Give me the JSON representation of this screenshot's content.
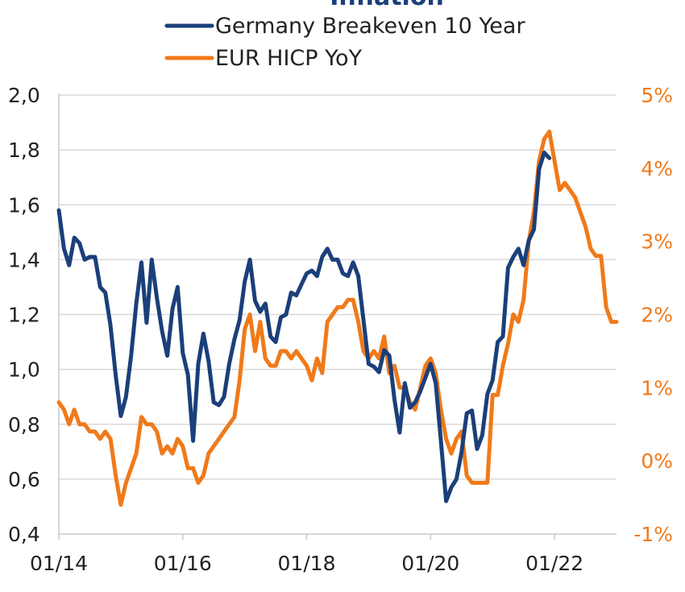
{
  "chart_data": {
    "type": "line",
    "title": "Inflation",
    "colors": {
      "breakeven": "#1b3f7a",
      "hicp": "#f07a1a",
      "grid": "#d9d9d9",
      "axis": "#c8c8c8"
    },
    "x_ticks": [
      "01/14",
      "01/16",
      "01/18",
      "01/20",
      "01/22"
    ],
    "x_range": [
      "2014-01",
      "2023-01"
    ],
    "y_left": {
      "ticks": [
        "0,4",
        "0,6",
        "0,8",
        "1,0",
        "1,2",
        "1,4",
        "1,6",
        "1,8",
        "2,0"
      ],
      "range": [
        0.4,
        2.0
      ]
    },
    "y_right": {
      "ticks": [
        "-1%",
        "0%",
        "1%",
        "2%",
        "3%",
        "4%",
        "5%"
      ],
      "range": [
        -1,
        5
      ]
    },
    "legend_position": "top-center",
    "grid": "horizontal",
    "series": [
      {
        "name": "Germany Breakeven 10 Year",
        "axis": "left",
        "points": [
          [
            "2014-01",
            1.58
          ],
          [
            "2014-02",
            1.44
          ],
          [
            "2014-03",
            1.38
          ],
          [
            "2014-04",
            1.48
          ],
          [
            "2014-05",
            1.46
          ],
          [
            "2014-06",
            1.4
          ],
          [
            "2014-07",
            1.41
          ],
          [
            "2014-08",
            1.41
          ],
          [
            "2014-09",
            1.3
          ],
          [
            "2014-10",
            1.28
          ],
          [
            "2014-11",
            1.16
          ],
          [
            "2014-12",
            0.98
          ],
          [
            "2015-01",
            0.83
          ],
          [
            "2015-02",
            0.9
          ],
          [
            "2015-03",
            1.05
          ],
          [
            "2015-04",
            1.24
          ],
          [
            "2015-05",
            1.39
          ],
          [
            "2015-06",
            1.17
          ],
          [
            "2015-07",
            1.4
          ],
          [
            "2015-08",
            1.26
          ],
          [
            "2015-09",
            1.14
          ],
          [
            "2015-10",
            1.05
          ],
          [
            "2015-11",
            1.22
          ],
          [
            "2015-12",
            1.3
          ],
          [
            "2016-01",
            1.06
          ],
          [
            "2016-02",
            0.98
          ],
          [
            "2016-03",
            0.74
          ],
          [
            "2016-04",
            1.02
          ],
          [
            "2016-05",
            1.13
          ],
          [
            "2016-06",
            1.03
          ],
          [
            "2016-07",
            0.88
          ],
          [
            "2016-08",
            0.87
          ],
          [
            "2016-09",
            0.9
          ],
          [
            "2016-10",
            1.02
          ],
          [
            "2016-11",
            1.11
          ],
          [
            "2016-12",
            1.18
          ],
          [
            "2017-01",
            1.32
          ],
          [
            "2017-02",
            1.4
          ],
          [
            "2017-03",
            1.25
          ],
          [
            "2017-04",
            1.21
          ],
          [
            "2017-05",
            1.24
          ],
          [
            "2017-06",
            1.12
          ],
          [
            "2017-07",
            1.1
          ],
          [
            "2017-08",
            1.19
          ],
          [
            "2017-09",
            1.2
          ],
          [
            "2017-10",
            1.28
          ],
          [
            "2017-11",
            1.27
          ],
          [
            "2017-12",
            1.31
          ],
          [
            "2018-01",
            1.35
          ],
          [
            "2018-02",
            1.36
          ],
          [
            "2018-03",
            1.34
          ],
          [
            "2018-04",
            1.41
          ],
          [
            "2018-05",
            1.44
          ],
          [
            "2018-06",
            1.4
          ],
          [
            "2018-07",
            1.4
          ],
          [
            "2018-08",
            1.35
          ],
          [
            "2018-09",
            1.34
          ],
          [
            "2018-10",
            1.39
          ],
          [
            "2018-11",
            1.34
          ],
          [
            "2018-12",
            1.18
          ],
          [
            "2019-01",
            1.02
          ],
          [
            "2019-02",
            1.01
          ],
          [
            "2019-03",
            0.99
          ],
          [
            "2019-04",
            1.07
          ],
          [
            "2019-05",
            1.05
          ],
          [
            "2019-06",
            0.89
          ],
          [
            "2019-07",
            0.77
          ],
          [
            "2019-08",
            0.95
          ],
          [
            "2019-09",
            0.86
          ],
          [
            "2019-10",
            0.88
          ],
          [
            "2019-11",
            0.92
          ],
          [
            "2019-12",
            0.97
          ],
          [
            "2020-01",
            1.02
          ],
          [
            "2020-02",
            0.95
          ],
          [
            "2020-03",
            0.74
          ],
          [
            "2020-04",
            0.52
          ],
          [
            "2020-05",
            0.57
          ],
          [
            "2020-06",
            0.6
          ],
          [
            "2020-07",
            0.7
          ],
          [
            "2020-08",
            0.84
          ],
          [
            "2020-09",
            0.85
          ],
          [
            "2020-10",
            0.71
          ],
          [
            "2020-11",
            0.76
          ],
          [
            "2020-12",
            0.91
          ],
          [
            "2021-01",
            0.96
          ],
          [
            "2021-02",
            1.1
          ],
          [
            "2021-03",
            1.12
          ],
          [
            "2021-04",
            1.37
          ],
          [
            "2021-05",
            1.41
          ],
          [
            "2021-06",
            1.44
          ],
          [
            "2021-07",
            1.38
          ],
          [
            "2021-08",
            1.47
          ],
          [
            "2021-09",
            1.51
          ],
          [
            "2021-10",
            1.73
          ],
          [
            "2021-11",
            1.79
          ],
          [
            "2021-12",
            1.77
          ]
        ]
      },
      {
        "name": "EUR HICP YoY",
        "axis": "right",
        "points": [
          [
            "2014-01",
            0.8
          ],
          [
            "2014-02",
            0.7
          ],
          [
            "2014-03",
            0.5
          ],
          [
            "2014-04",
            0.7
          ],
          [
            "2014-05",
            0.5
          ],
          [
            "2014-06",
            0.5
          ],
          [
            "2014-07",
            0.4
          ],
          [
            "2014-08",
            0.4
          ],
          [
            "2014-09",
            0.3
          ],
          [
            "2014-10",
            0.4
          ],
          [
            "2014-11",
            0.3
          ],
          [
            "2014-12",
            -0.2
          ],
          [
            "2015-01",
            -0.6
          ],
          [
            "2015-02",
            -0.3
          ],
          [
            "2015-03",
            -0.1
          ],
          [
            "2015-04",
            0.1
          ],
          [
            "2015-05",
            0.6
          ],
          [
            "2015-06",
            0.5
          ],
          [
            "2015-07",
            0.5
          ],
          [
            "2015-08",
            0.4
          ],
          [
            "2015-09",
            0.1
          ],
          [
            "2015-10",
            0.2
          ],
          [
            "2015-11",
            0.1
          ],
          [
            "2015-12",
            0.3
          ],
          [
            "2016-01",
            0.2
          ],
          [
            "2016-02",
            -0.1
          ],
          [
            "2016-03",
            -0.1
          ],
          [
            "2016-04",
            -0.3
          ],
          [
            "2016-05",
            -0.2
          ],
          [
            "2016-06",
            0.1
          ],
          [
            "2016-07",
            0.2
          ],
          [
            "2016-08",
            0.3
          ],
          [
            "2016-09",
            0.4
          ],
          [
            "2016-10",
            0.5
          ],
          [
            "2016-11",
            0.6
          ],
          [
            "2016-12",
            1.1
          ],
          [
            "2017-01",
            1.8
          ],
          [
            "2017-02",
            2.0
          ],
          [
            "2017-03",
            1.5
          ],
          [
            "2017-04",
            1.9
          ],
          [
            "2017-05",
            1.4
          ],
          [
            "2017-06",
            1.3
          ],
          [
            "2017-07",
            1.3
          ],
          [
            "2017-08",
            1.5
          ],
          [
            "2017-09",
            1.5
          ],
          [
            "2017-10",
            1.4
          ],
          [
            "2017-11",
            1.5
          ],
          [
            "2017-12",
            1.4
          ],
          [
            "2018-01",
            1.3
          ],
          [
            "2018-02",
            1.1
          ],
          [
            "2018-03",
            1.4
          ],
          [
            "2018-04",
            1.2
          ],
          [
            "2018-05",
            1.9
          ],
          [
            "2018-06",
            2.0
          ],
          [
            "2018-07",
            2.1
          ],
          [
            "2018-08",
            2.1
          ],
          [
            "2018-09",
            2.2
          ],
          [
            "2018-10",
            2.2
          ],
          [
            "2018-11",
            1.9
          ],
          [
            "2018-12",
            1.5
          ],
          [
            "2019-01",
            1.4
          ],
          [
            "2019-02",
            1.5
          ],
          [
            "2019-03",
            1.4
          ],
          [
            "2019-04",
            1.7
          ],
          [
            "2019-05",
            1.2
          ],
          [
            "2019-06",
            1.3
          ],
          [
            "2019-07",
            1.0
          ],
          [
            "2019-08",
            1.0
          ],
          [
            "2019-09",
            0.8
          ],
          [
            "2019-10",
            0.7
          ],
          [
            "2019-11",
            1.0
          ],
          [
            "2019-12",
            1.3
          ],
          [
            "2020-01",
            1.4
          ],
          [
            "2020-02",
            1.2
          ],
          [
            "2020-03",
            0.7
          ],
          [
            "2020-04",
            0.3
          ],
          [
            "2020-05",
            0.1
          ],
          [
            "2020-06",
            0.3
          ],
          [
            "2020-07",
            0.4
          ],
          [
            "2020-08",
            -0.2
          ],
          [
            "2020-09",
            -0.3
          ],
          [
            "2020-10",
            -0.3
          ],
          [
            "2020-11",
            -0.3
          ],
          [
            "2020-12",
            -0.3
          ],
          [
            "2021-01",
            0.9
          ],
          [
            "2021-02",
            0.9
          ],
          [
            "2021-03",
            1.3
          ],
          [
            "2021-04",
            1.6
          ],
          [
            "2021-05",
            2.0
          ],
          [
            "2021-06",
            1.9
          ],
          [
            "2021-07",
            2.2
          ],
          [
            "2021-08",
            3.0
          ],
          [
            "2021-09",
            3.4
          ],
          [
            "2021-10",
            4.1
          ],
          [
            "2021-11",
            4.4
          ],
          [
            "2021-12",
            4.5
          ],
          [
            "2022-01",
            4.1
          ],
          [
            "2022-02",
            3.7
          ],
          [
            "2022-03",
            3.8
          ],
          [
            "2022-04",
            3.7
          ],
          [
            "2022-05",
            3.6
          ],
          [
            "2022-06",
            3.4
          ],
          [
            "2022-07",
            3.2
          ],
          [
            "2022-08",
            2.9
          ],
          [
            "2022-09",
            2.8
          ],
          [
            "2022-10",
            2.8
          ],
          [
            "2022-11",
            2.1
          ],
          [
            "2022-12",
            1.9
          ],
          [
            "2023-01",
            1.9
          ]
        ]
      }
    ]
  }
}
